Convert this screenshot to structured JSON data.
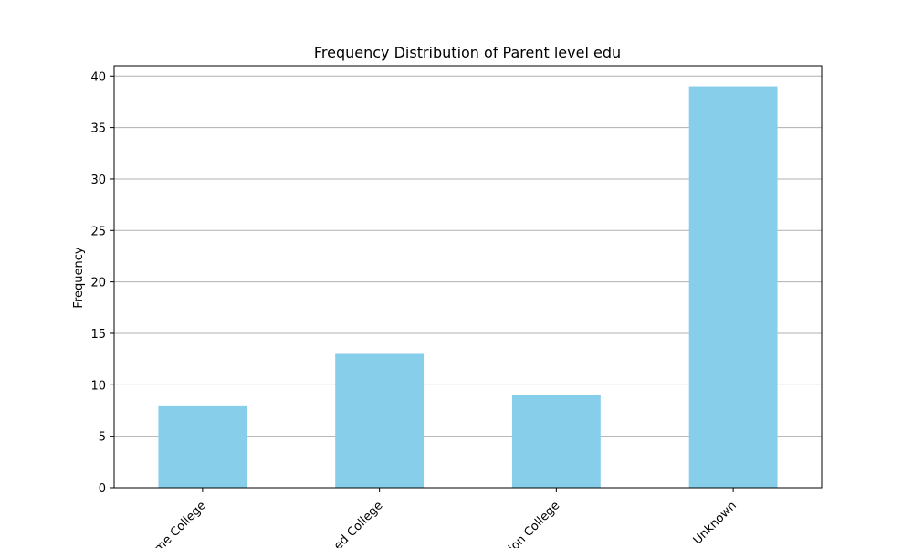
{
  "chart_data": {
    "type": "bar",
    "title": "Frequency Distribution of Parent level edu",
    "xlabel": "",
    "ylabel": "Frequency",
    "categories": [
      "Some College",
      "Associated College",
      "Vocation College",
      "Unknown"
    ],
    "visible_tick_labels": [
      "me College",
      "ed College",
      "ion College",
      "Unknown"
    ],
    "values": [
      8,
      13,
      9,
      39
    ],
    "ylim": [
      0,
      41
    ],
    "yticks": [
      0,
      5,
      10,
      15,
      20,
      25,
      30,
      35,
      40
    ],
    "grid": "horizontal",
    "bar_color": "#87CEEB",
    "tick_label_rotation_deg": 45
  }
}
